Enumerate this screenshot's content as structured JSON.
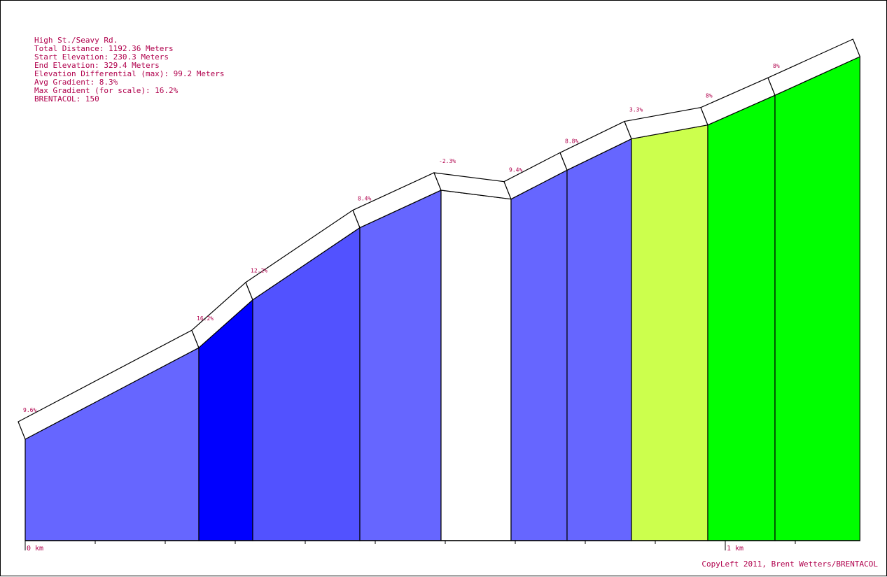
{
  "info": {
    "name": "High St./Seavy Rd.",
    "total_distance": "Total Distance: 1192.36 Meters",
    "start_elevation": "Start Elevation: 230.3 Meters",
    "end_elevation": "End Elevation: 329.4 Meters",
    "elevation_differential": "Elevation Differential (max): 99.2 Meters",
    "avg_gradient": "Avg Gradient: 8.3%",
    "max_gradient": "Max Gradient (for scale): 16.2%",
    "brentacol": "BRENTACOL: 150"
  },
  "copyright": "CopyLeft 2011, Brent Wetters/BRENTACOL",
  "colors": {
    "label": "#b0004c",
    "outline": "#000000"
  },
  "chart_data": {
    "type": "area",
    "title": "High St./Seavy Rd.",
    "xlabel": "",
    "ylabel": "",
    "x_unit": "km",
    "xlim": [
      0,
      1.19236
    ],
    "ylim": [
      230.3,
      329.4
    ],
    "tick_labels": [
      {
        "x": 0,
        "label": "0 km"
      },
      {
        "x": 1,
        "label": "1 km"
      }
    ],
    "minor_tick_step_km": 0.1,
    "segments": [
      {
        "start_km": 0.0,
        "end_km": 0.248,
        "start_elev": 230.3,
        "end_elev": 254.0,
        "gradient_label": "9.6%",
        "color": "#6666ff"
      },
      {
        "start_km": 0.248,
        "end_km": 0.325,
        "start_elev": 254.0,
        "end_elev": 266.4,
        "gradient_label": "16.2%",
        "color": "#0000ff"
      },
      {
        "start_km": 0.325,
        "end_km": 0.478,
        "start_elev": 266.4,
        "end_elev": 285.1,
        "gradient_label": "12.2%",
        "color": "#5252ff"
      },
      {
        "start_km": 0.478,
        "end_km": 0.594,
        "start_elev": 285.1,
        "end_elev": 294.8,
        "gradient_label": "8.4%",
        "color": "#6666ff"
      },
      {
        "start_km": 0.594,
        "end_km": 0.694,
        "start_elev": 294.8,
        "end_elev": 292.5,
        "gradient_label": "-2.3%",
        "color": "#ffffff"
      },
      {
        "start_km": 0.694,
        "end_km": 0.774,
        "start_elev": 292.5,
        "end_elev": 300.0,
        "gradient_label": "9.4%",
        "color": "#6666ff"
      },
      {
        "start_km": 0.774,
        "end_km": 0.866,
        "start_elev": 300.0,
        "end_elev": 308.1,
        "gradient_label": "8.8%",
        "color": "#6666ff"
      },
      {
        "start_km": 0.866,
        "end_km": 0.975,
        "start_elev": 308.1,
        "end_elev": 311.7,
        "gradient_label": "3.3%",
        "color": "#ccff4d"
      },
      {
        "start_km": 0.975,
        "end_km": 1.071,
        "start_elev": 311.7,
        "end_elev": 319.4,
        "gradient_label": "8%",
        "color": "#00ff00"
      },
      {
        "start_km": 1.071,
        "end_km": 1.19236,
        "start_elev": 319.4,
        "end_elev": 329.4,
        "gradient_label": "8%",
        "color": "#00ff00"
      }
    ]
  }
}
